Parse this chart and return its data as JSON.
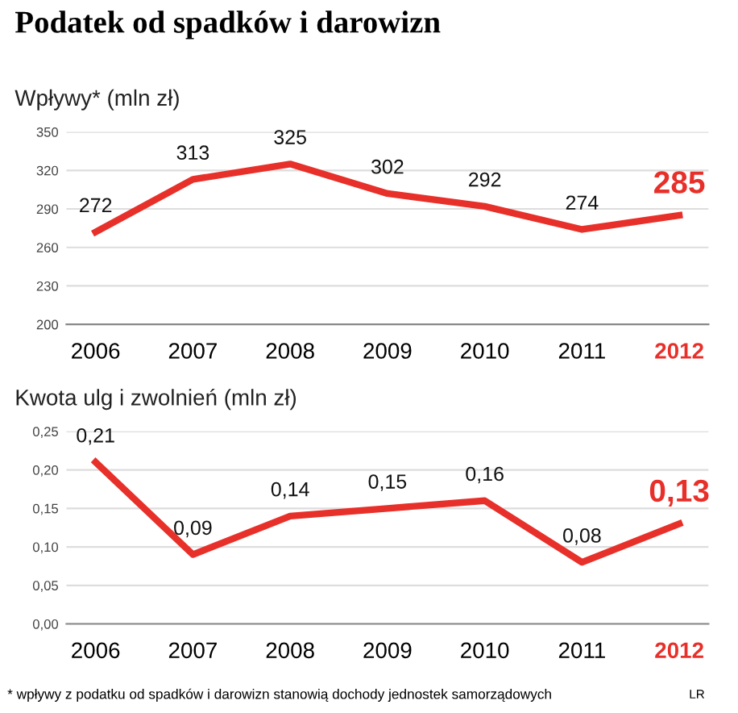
{
  "chart_data": [
    {
      "type": "line",
      "title": "Podatek od spadków i darowizn",
      "subtitle": "Wpływy* (mln zł)",
      "categories": [
        "2006",
        "2007",
        "2008",
        "2009",
        "2010",
        "2011",
        "2012"
      ],
      "series": [
        {
          "color": "#e8302a",
          "values": [
            272,
            313,
            325,
            302,
            292,
            274,
            285
          ],
          "value_labels": [
            "272",
            "313",
            "325",
            "302",
            "292",
            "274",
            "285"
          ]
        }
      ],
      "ylim": [
        200,
        350
      ],
      "yticks": [
        200,
        230,
        260,
        290,
        320,
        350
      ],
      "grid": "y",
      "marker": "none",
      "line_style": "solid"
    },
    {
      "type": "line",
      "subtitle": "Kwota ulg i zwolnień (mln zł)",
      "categories": [
        "2006",
        "2007",
        "2008",
        "2009",
        "2010",
        "2011",
        "2012"
      ],
      "series": [
        {
          "color": "#e8302a",
          "values": [
            0.21,
            0.09,
            0.14,
            0.15,
            0.16,
            0.08,
            0.13
          ],
          "value_labels": [
            "0,21",
            "0,09",
            "0,14",
            "0,15",
            "0,16",
            "0,08",
            "0,13"
          ]
        }
      ],
      "ylim": [
        0,
        0.25
      ],
      "yticks": [
        {
          "value": 0,
          "label": "0,00"
        },
        {
          "value": 0.05,
          "label": "0,05"
        },
        {
          "value": 0.1,
          "label": "0,10"
        },
        {
          "value": 0.15,
          "label": "0,15"
        },
        {
          "value": 0.2,
          "label": "0,20"
        },
        {
          "value": 0.25,
          "label": "0,25"
        }
      ],
      "grid": "y",
      "marker": "none",
      "line_style": "solid",
      "annotations": [
        "* wpływy z podatku od spadków i darowizn stanowią dochody jednostek samorządowych",
        "LR"
      ]
    }
  ]
}
